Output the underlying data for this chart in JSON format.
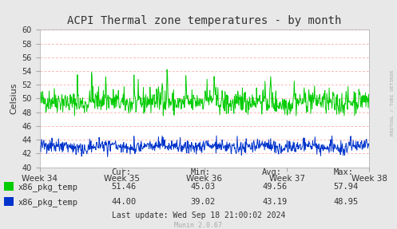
{
  "title": "ACPI Thermal zone temperatures - by month",
  "ylabel": "Celsius",
  "bg_color": "#e8e8e8",
  "plot_bg_color": "#ffffff",
  "grid_color": "#ff9999",
  "ylim": [
    40,
    60
  ],
  "yticks": [
    40,
    42,
    44,
    46,
    48,
    50,
    52,
    54,
    56,
    58,
    60
  ],
  "xtick_labels": [
    "Week 34",
    "Week 35",
    "Week 36",
    "Week 37",
    "Week 38"
  ],
  "green_series_cur": 51.46,
  "green_series_min": 45.03,
  "green_series_avg": 49.56,
  "green_series_max": 57.94,
  "blue_series_cur": 44.0,
  "blue_series_min": 39.02,
  "blue_series_avg": 43.19,
  "blue_series_max": 48.95,
  "green_color": "#00cc00",
  "blue_color": "#0033cc",
  "legend_label1": "x86_pkg_temp",
  "legend_label2": "x86_pkg_temp",
  "footer_text": "Last update: Wed Sep 18 21:00:02 2024",
  "munin_text": "Munin 2.0.67",
  "watermark": "RRDTOOL / TOBI OETIKER",
  "title_color": "#333333",
  "axis_color": "#333333",
  "tick_color": "#aaaaaa"
}
